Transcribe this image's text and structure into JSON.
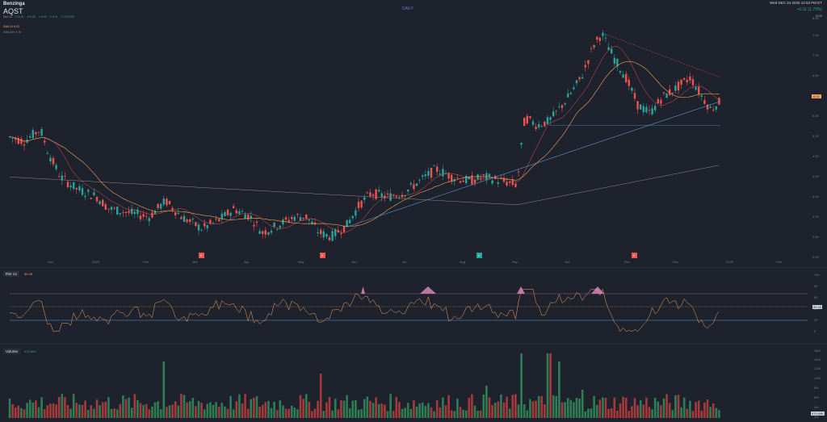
{
  "header": {
    "brand": "Benzinga",
    "symbol": "AQST",
    "ohlc": [
      {
        "label": "Dec 24",
        "color": "#9598a1"
      },
      {
        "label": "O 5.90",
        "color": "#26a69a"
      },
      {
        "label": "H 6.05",
        "color": "#26a69a"
      },
      {
        "label": "L 5.83",
        "color": "#26a69a"
      },
      {
        "label": "C 6.01",
        "color": "#26a69a"
      },
      {
        "label": "V 970,690",
        "color": "#26a69a"
      }
    ],
    "ma1": "SMA 20 6.02",
    "ma2": "SMA 200 4.76",
    "period": "DAILY",
    "datetime": "Wed DEC 24 2025 12:53 PM ET",
    "change": "+0.11 (1.79%)",
    "last_label": "6.00"
  },
  "x_axis_labels": [
    "Nov",
    "2025",
    "Feb",
    "Mar",
    "Apr",
    "May",
    "Jun",
    "Jul",
    "Aug",
    "Sep",
    "Oct",
    "Nov",
    "Dec",
    "2026",
    "Feb"
  ],
  "event_badges": [
    {
      "label": "E",
      "color": "#ef5350"
    },
    {
      "label": "E",
      "color": "#ef5350"
    },
    {
      "label": "C",
      "color": "#26a69a"
    },
    {
      "label": "E",
      "color": "#ef5350"
    }
  ],
  "price_axis_labels": [
    "8.00",
    "7.50",
    "7.00",
    "6.50",
    "6.00",
    "5.50",
    "5.00",
    "4.50",
    "4.00",
    "3.50",
    "3.00",
    "2.50",
    "2.00"
  ],
  "price_tag": "6.01",
  "rsi": {
    "label": "RSI 14",
    "value": "55.28",
    "axis": [
      "100",
      "80",
      "60",
      "40",
      "20",
      "0"
    ],
    "tag": "55.28"
  },
  "volume": {
    "label": "Volume",
    "value": "970.69K",
    "axis": [
      "16M",
      "14M",
      "12M",
      "10M",
      "8M",
      "6M",
      "4M",
      "2M"
    ],
    "tag": "970.69K"
  },
  "colors": {
    "up": "#26a69a",
    "down": "#ef5350",
    "background": "#1e222d",
    "ma_orange": "#f7a35c",
    "rsi_line": "#f7a35c"
  }
}
